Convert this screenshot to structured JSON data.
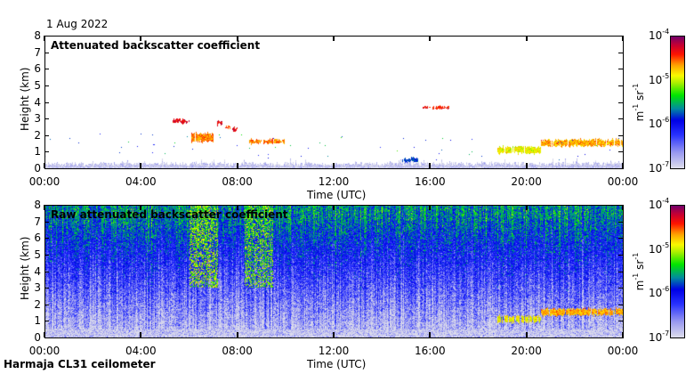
{
  "date": "1 Aug 2022",
  "footer": "Harmaja CL31 ceilometer",
  "colors": {
    "low": "#d8d8ee",
    "blue": "#2030ff",
    "green": "#00e000",
    "yellow": "#f0f000",
    "red": "#ff0000",
    "high": "#800070"
  },
  "chart_data": [
    {
      "type": "heatmap",
      "title": "Attenuated backscatter coefficient",
      "xlabel": "Time (UTC)",
      "ylabel": "Height (km)",
      "xlim_hours": [
        0,
        24
      ],
      "ylim": [
        0,
        8
      ],
      "xticks": [
        "00:00",
        "04:00",
        "08:00",
        "12:00",
        "16:00",
        "20:00",
        "00:00"
      ],
      "yticks": [
        "0",
        "1",
        "2",
        "3",
        "4",
        "5",
        "6",
        "7",
        "8"
      ],
      "colorbar": {
        "label_base": "m",
        "label_exp1": "-1",
        "label_mid": " sr",
        "label_exp2": "-1",
        "ticks": [
          "10",
          "10",
          "10",
          "10"
        ],
        "tick_exps": [
          "-4",
          "-5",
          "-6",
          "-7"
        ],
        "range": [
          1e-07,
          0.0001
        ],
        "scale": "log"
      },
      "features": [
        {
          "name": "boundary layer",
          "t0": 0,
          "t1": 24,
          "h0": 0,
          "h1": 0.4,
          "log10": -6.9
        },
        {
          "name": "cloud",
          "t0": 5.3,
          "t1": 6.0,
          "h0": 2.75,
          "h1": 2.95,
          "log10": -4.3
        },
        {
          "name": "cloud",
          "t0": 6.1,
          "t1": 7.0,
          "h0": 1.6,
          "h1": 2.1,
          "log10": -4.6
        },
        {
          "name": "cloud",
          "t0": 7.1,
          "t1": 7.4,
          "h0": 2.65,
          "h1": 2.85,
          "log10": -4.3
        },
        {
          "name": "cloud",
          "t0": 7.5,
          "t1": 7.7,
          "h0": 2.4,
          "h1": 2.55,
          "log10": -4.5
        },
        {
          "name": "cloud",
          "t0": 7.8,
          "t1": 8.0,
          "h0": 2.25,
          "h1": 2.4,
          "log10": -4.3
        },
        {
          "name": "cloud",
          "t0": 8.5,
          "t1": 10.0,
          "h0": 1.5,
          "h1": 1.7,
          "log10": -4.6
        },
        {
          "name": "cloud",
          "t0": 15.7,
          "t1": 16.8,
          "h0": 3.6,
          "h1": 3.72,
          "log10": -4.4
        },
        {
          "name": "cloud",
          "t0": 14.8,
          "t1": 15.5,
          "h0": 0.35,
          "h1": 0.6,
          "log10": -5.8
        },
        {
          "name": "cloud",
          "t0": 18.8,
          "t1": 20.6,
          "h0": 0.9,
          "h1": 1.3,
          "log10": -4.9
        },
        {
          "name": "cloud",
          "t0": 20.6,
          "t1": 24,
          "h0": 1.35,
          "h1": 1.7,
          "log10": -4.7
        }
      ]
    },
    {
      "type": "heatmap",
      "title": "Raw attenuated backscatter coefficient",
      "xlabel": "Time (UTC)",
      "ylabel": "Height (km)",
      "xlim_hours": [
        0,
        24
      ],
      "ylim": [
        0,
        8
      ],
      "xticks": [
        "00:00",
        "04:00",
        "08:00",
        "12:00",
        "16:00",
        "20:00",
        "00:00"
      ],
      "yticks": [
        "0",
        "1",
        "2",
        "3",
        "4",
        "5",
        "6",
        "7",
        "8"
      ],
      "colorbar": {
        "label_base": "m",
        "label_exp1": "-1",
        "label_mid": " sr",
        "label_exp2": "-1",
        "ticks": [
          "10",
          "10",
          "10",
          "10"
        ],
        "tick_exps": [
          "-4",
          "-5",
          "-6",
          "-7"
        ],
        "range": [
          1e-07,
          0.0001
        ],
        "scale": "log"
      },
      "features": [
        {
          "name": "noise (increasing with height)",
          "t0": 0,
          "t1": 24,
          "h0": 0,
          "h1": 8,
          "log10": -5.8
        },
        {
          "name": "enhanced noise",
          "t0": 6.0,
          "t1": 7.2,
          "h0": 3,
          "h1": 8,
          "log10": -5.1
        },
        {
          "name": "enhanced noise",
          "t0": 8.3,
          "t1": 9.5,
          "h0": 3,
          "h1": 8,
          "log10": -5.2
        },
        {
          "name": "cloud",
          "t0": 18.8,
          "t1": 20.6,
          "h0": 0.9,
          "h1": 1.3,
          "log10": -4.9
        },
        {
          "name": "cloud",
          "t0": 20.6,
          "t1": 24,
          "h0": 1.35,
          "h1": 1.7,
          "log10": -4.7
        }
      ]
    }
  ]
}
